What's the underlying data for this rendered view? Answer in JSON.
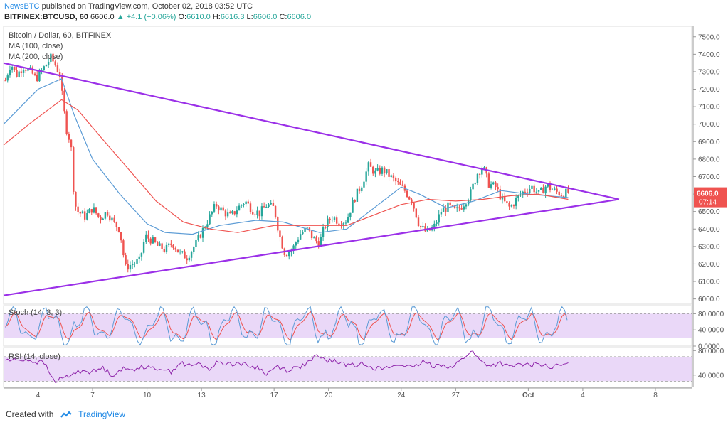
{
  "header": {
    "publisher": "NewsBTC",
    "published_text": "published on TradingView.com, October 02, 2018 03:52 UTC",
    "symbol": "BITFINEX:BTCUSD, 60",
    "price": "6606.0",
    "change": "▲ +4.1 (+0.06%)",
    "ohlc": {
      "o_label": "O:",
      "o": "6610.0",
      "h_label": "H:",
      "h": "6616.3",
      "l_label": "L:",
      "l": "6606.0",
      "c_label": "C:",
      "c": "6606.0"
    }
  },
  "legend": {
    "title": "Bitcoin / Dollar, 60, BITFINEX",
    "ma100": "MA (100, close)",
    "ma200": "MA (200, close)",
    "stoch": "Stoch (14, 3, 3)",
    "rsi": "RSI (14, close)"
  },
  "colors": {
    "trendline": "#9b30e8",
    "ma100": "#5b9bd5",
    "ma200": "#ef5350",
    "up": "#26a69a",
    "down": "#ef5350",
    "price_tag": "#ef5350",
    "osc_band": "#e1c8f5",
    "rsi_line": "#8e24aa",
    "stoch_k": "#5b9bd5",
    "stoch_d": "#ef5350"
  },
  "price_tag": {
    "price": "6606.0",
    "countdown": "07:14"
  },
  "footer": {
    "created_with": "Created with",
    "brand": "TradingView"
  },
  "chart_data": [
    {
      "type": "candlestick",
      "title": "Bitcoin / Dollar, 60, BITFINEX",
      "ylim": [
        5970,
        7560
      ],
      "y_ticks": [
        "7500.0",
        "7400.0",
        "7300.0",
        "7200.0",
        "7100.0",
        "7000.0",
        "6900.0",
        "6800.0",
        "6700.0",
        "6600.0",
        "6500.0",
        "6400.0",
        "6300.0",
        "6200.0",
        "6100.0",
        "6000.0"
      ],
      "x_ticks": [
        "4",
        "7",
        "10",
        "13",
        "17",
        "20",
        "24",
        "27",
        "Oct",
        "4",
        "8"
      ],
      "x_range_days": [
        2.1,
        40.0
      ],
      "close_path": [
        [
          2.2,
          7250
        ],
        [
          2.5,
          7350
        ],
        [
          2.8,
          7280
        ],
        [
          3.2,
          7330
        ],
        [
          3.6,
          7300
        ],
        [
          3.9,
          7260
        ],
        [
          4.3,
          7320
        ],
        [
          4.7,
          7380
        ],
        [
          5.0,
          7330
        ],
        [
          5.2,
          7280
        ],
        [
          5.4,
          7100
        ],
        [
          5.6,
          6950
        ],
        [
          5.8,
          6900
        ],
        [
          6.0,
          6550
        ],
        [
          6.2,
          6500
        ],
        [
          6.6,
          6470
        ],
        [
          7.0,
          6520
        ],
        [
          7.4,
          6460
        ],
        [
          7.8,
          6500
        ],
        [
          8.2,
          6430
        ],
        [
          8.5,
          6400
        ],
        [
          8.8,
          6180
        ],
        [
          9.2,
          6200
        ],
        [
          9.6,
          6220
        ],
        [
          9.9,
          6360
        ],
        [
          10.2,
          6340
        ],
        [
          10.6,
          6300
        ],
        [
          11.0,
          6280
        ],
        [
          11.4,
          6320
        ],
        [
          11.8,
          6260
        ],
        [
          12.2,
          6240
        ],
        [
          12.6,
          6300
        ],
        [
          13.0,
          6380
        ],
        [
          13.4,
          6460
        ],
        [
          13.8,
          6540
        ],
        [
          14.2,
          6500
        ],
        [
          14.6,
          6470
        ],
        [
          15.0,
          6520
        ],
        [
          15.4,
          6560
        ],
        [
          15.8,
          6510
        ],
        [
          16.2,
          6490
        ],
        [
          16.6,
          6540
        ],
        [
          17.0,
          6520
        ],
        [
          17.3,
          6360
        ],
        [
          17.6,
          6260
        ],
        [
          18.0,
          6280
        ],
        [
          18.4,
          6370
        ],
        [
          18.8,
          6400
        ],
        [
          19.2,
          6340
        ],
        [
          19.5,
          6320
        ],
        [
          19.8,
          6420
        ],
        [
          20.2,
          6470
        ],
        [
          20.6,
          6440
        ],
        [
          21.0,
          6450
        ],
        [
          21.4,
          6570
        ],
        [
          21.8,
          6650
        ],
        [
          22.2,
          6760
        ],
        [
          22.6,
          6720
        ],
        [
          23.0,
          6740
        ],
        [
          23.4,
          6700
        ],
        [
          23.8,
          6660
        ],
        [
          24.2,
          6620
        ],
        [
          24.6,
          6560
        ],
        [
          25.0,
          6420
        ],
        [
          25.4,
          6380
        ],
        [
          25.8,
          6410
        ],
        [
          26.2,
          6500
        ],
        [
          26.6,
          6530
        ],
        [
          27.0,
          6500
        ],
        [
          27.4,
          6540
        ],
        [
          27.8,
          6600
        ],
        [
          28.2,
          6720
        ],
        [
          28.5,
          6760
        ],
        [
          28.8,
          6660
        ],
        [
          29.2,
          6640
        ],
        [
          29.6,
          6560
        ],
        [
          30.0,
          6520
        ],
        [
          30.4,
          6580
        ],
        [
          30.8,
          6620
        ],
        [
          31.2,
          6640
        ],
        [
          31.6,
          6600
        ],
        [
          32.0,
          6650
        ],
        [
          32.4,
          6620
        ],
        [
          32.8,
          6600
        ],
        [
          33.2,
          6610
        ]
      ],
      "ma100_path": [
        [
          2.1,
          7000
        ],
        [
          4.0,
          7200
        ],
        [
          5.3,
          7260
        ],
        [
          6.0,
          7050
        ],
        [
          7.0,
          6800
        ],
        [
          8.5,
          6600
        ],
        [
          10.0,
          6430
        ],
        [
          11.0,
          6380
        ],
        [
          12.5,
          6370
        ],
        [
          14.0,
          6420
        ],
        [
          16.0,
          6450
        ],
        [
          17.5,
          6440
        ],
        [
          19.5,
          6380
        ],
        [
          21.0,
          6400
        ],
        [
          22.5,
          6520
        ],
        [
          24.0,
          6640
        ],
        [
          25.0,
          6600
        ],
        [
          26.5,
          6520
        ],
        [
          28.0,
          6560
        ],
        [
          29.5,
          6620
        ],
        [
          31.0,
          6600
        ],
        [
          33.2,
          6580
        ]
      ],
      "ma200_path": [
        [
          2.1,
          6880
        ],
        [
          3.5,
          7000
        ],
        [
          5.3,
          7140
        ],
        [
          6.2,
          7080
        ],
        [
          7.5,
          6920
        ],
        [
          9.0,
          6740
        ],
        [
          10.5,
          6560
        ],
        [
          12.0,
          6440
        ],
        [
          13.5,
          6400
        ],
        [
          15.0,
          6380
        ],
        [
          17.0,
          6420
        ],
        [
          19.0,
          6420
        ],
        [
          21.0,
          6420
        ],
        [
          22.5,
          6480
        ],
        [
          24.0,
          6540
        ],
        [
          25.5,
          6570
        ],
        [
          27.0,
          6560
        ],
        [
          28.5,
          6570
        ],
        [
          30.0,
          6590
        ],
        [
          31.5,
          6600
        ],
        [
          33.2,
          6570
        ]
      ],
      "trendlines": [
        {
          "name": "upper",
          "from": [
            2.1,
            7350
          ],
          "to": [
            36.0,
            6570
          ]
        },
        {
          "name": "lower",
          "from": [
            2.1,
            6020
          ],
          "to": [
            36.0,
            6570
          ]
        }
      ],
      "last_price": 6606.0
    },
    {
      "type": "line",
      "title": "Stoch (14, 3, 3)",
      "ylim": [
        0,
        100
      ],
      "y_ticks": [
        "80.0000",
        "40.0000",
        "0.0000"
      ],
      "band": [
        20,
        80
      ]
    },
    {
      "type": "line",
      "title": "RSI (14, close)",
      "ylim": [
        20,
        85
      ],
      "y_ticks": [
        "80.0000",
        "40.0000"
      ],
      "band": [
        30,
        70
      ],
      "values_approx": [
        65,
        64,
        66,
        62,
        60,
        30,
        35,
        42,
        48,
        45,
        52,
        40,
        50,
        48,
        55,
        50,
        52,
        45,
        60,
        55,
        58,
        50,
        62,
        58,
        60,
        55,
        52,
        42,
        55,
        48,
        52,
        58,
        70,
        65,
        62,
        58,
        55,
        60,
        52,
        50,
        55,
        58,
        50,
        62,
        55,
        58,
        52,
        65,
        80,
        62,
        55,
        60,
        52,
        58,
        55,
        60,
        52,
        55,
        58
      ]
    }
  ]
}
